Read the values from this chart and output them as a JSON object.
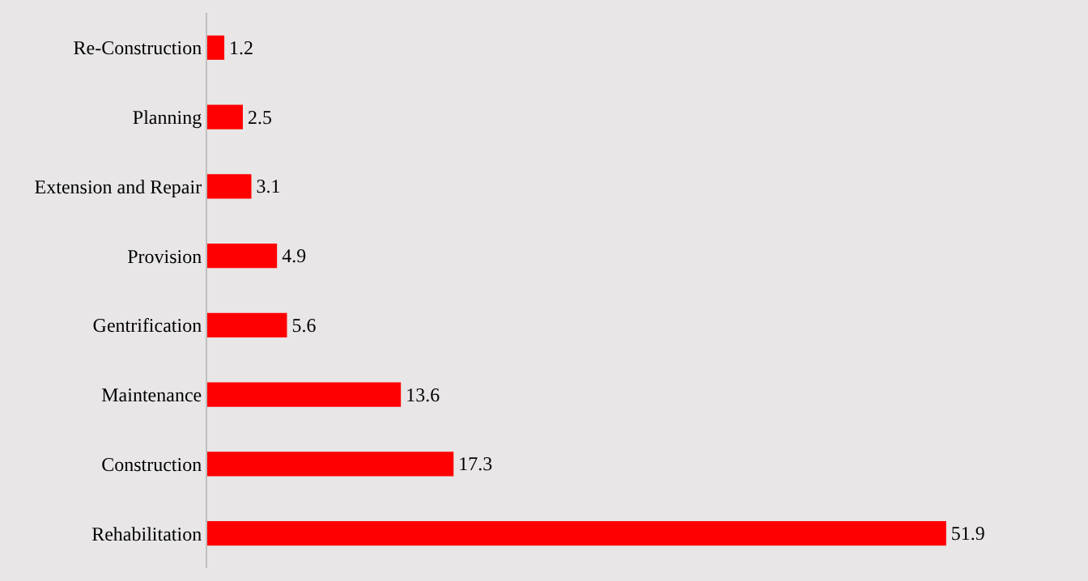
{
  "chart_data": {
    "type": "bar",
    "orientation": "horizontal",
    "categories": [
      "Re-Construction",
      "Planning",
      "Extension and Repair",
      "Provision",
      "Gentrification",
      "Maintenance",
      "Construction",
      "Rehabilitation"
    ],
    "values": [
      1.2,
      2.5,
      3.1,
      4.9,
      5.6,
      13.6,
      17.3,
      51.9
    ],
    "color": "#ff0000",
    "data_labels": true,
    "grid": false,
    "legend": false
  }
}
